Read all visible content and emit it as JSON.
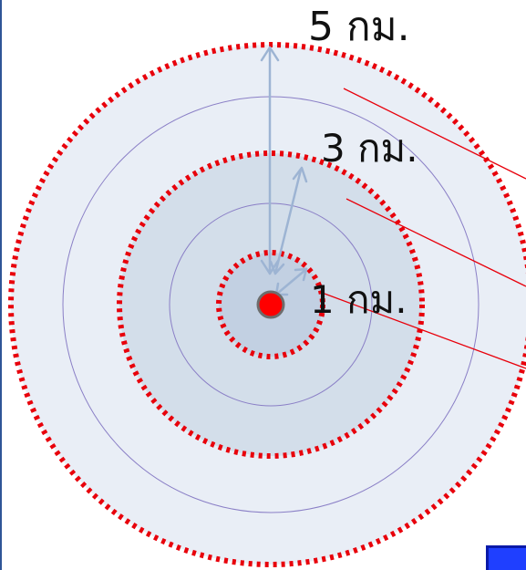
{
  "diagram": {
    "labels": {
      "outer": "5 กม.",
      "middle": "3 กม.",
      "inner": "1 กม."
    },
    "colors": {
      "dotted_ring": "#e8000b",
      "outer_fill": "#e9eef6",
      "middle_fill": "#d3deea",
      "inner_fill": "#c2d0e2",
      "thin_ring": "#8a7fc6",
      "arrow": "#9db4d3",
      "center_dot": "#ff0000",
      "leader_line": "#e8000b"
    }
  }
}
